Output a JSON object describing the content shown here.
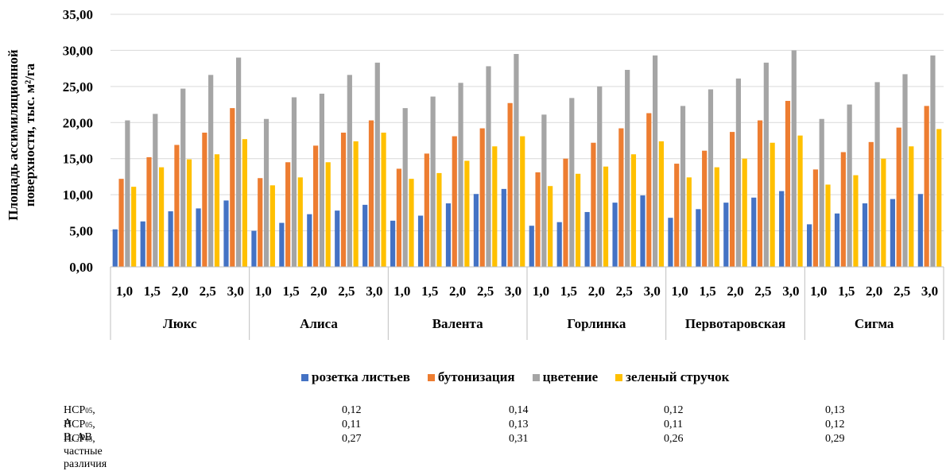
{
  "chart_data": {
    "type": "bar",
    "ylabel_lines": [
      "Площадь ассимиляционной",
      "поверхности, тыс. м²/га"
    ],
    "ylim": [
      0,
      35
    ],
    "yticks": [
      "0,00",
      "5,00",
      "10,00",
      "15,00",
      "20,00",
      "25,00",
      "30,00",
      "35,00"
    ],
    "grid": true,
    "legend_position": "bottom",
    "x_levels": [
      "1,0",
      "1,5",
      "2,0",
      "2,5",
      "3,0"
    ],
    "groups": [
      {
        "name": "Люкс",
        "values": [
          [
            5.2,
            12.2,
            20.3,
            11.1
          ],
          [
            6.3,
            15.2,
            21.2,
            13.8
          ],
          [
            7.7,
            16.9,
            24.7,
            14.9
          ],
          [
            8.1,
            18.6,
            26.6,
            15.6
          ],
          [
            9.2,
            22.0,
            29.0,
            17.7
          ]
        ]
      },
      {
        "name": "Алиса",
        "values": [
          [
            5.0,
            12.3,
            20.5,
            11.3
          ],
          [
            6.1,
            14.5,
            23.5,
            12.4
          ],
          [
            7.3,
            16.8,
            24.0,
            14.5
          ],
          [
            7.8,
            18.6,
            26.6,
            17.4
          ],
          [
            8.6,
            20.3,
            28.3,
            18.6
          ]
        ]
      },
      {
        "name": "Валента",
        "values": [
          [
            6.4,
            13.6,
            22.0,
            12.2
          ],
          [
            7.1,
            15.7,
            23.6,
            13.0
          ],
          [
            8.8,
            18.1,
            25.5,
            14.7
          ],
          [
            10.1,
            19.2,
            27.8,
            16.7
          ],
          [
            10.8,
            22.7,
            29.5,
            18.1
          ]
        ]
      },
      {
        "name": "Горлинка",
        "values": [
          [
            5.7,
            13.1,
            21.1,
            11.2
          ],
          [
            6.2,
            15.0,
            23.4,
            12.9
          ],
          [
            7.6,
            17.2,
            25.0,
            13.9
          ],
          [
            8.9,
            19.2,
            27.3,
            15.6
          ],
          [
            9.9,
            21.3,
            29.3,
            17.4
          ]
        ]
      },
      {
        "name": "Первотаровская",
        "values": [
          [
            6.8,
            14.3,
            22.3,
            12.4
          ],
          [
            8.0,
            16.1,
            24.6,
            13.8
          ],
          [
            8.9,
            18.7,
            26.1,
            15.0
          ],
          [
            9.6,
            20.3,
            28.3,
            17.2
          ],
          [
            10.5,
            23.0,
            30.0,
            18.2
          ]
        ]
      },
      {
        "name": "Сигма",
        "values": [
          [
            5.9,
            13.5,
            20.5,
            11.4
          ],
          [
            7.4,
            15.9,
            22.5,
            12.7
          ],
          [
            8.8,
            17.3,
            25.6,
            15.0
          ],
          [
            9.4,
            19.3,
            26.7,
            16.7
          ],
          [
            10.1,
            22.3,
            29.3,
            19.1
          ]
        ]
      }
    ],
    "series": [
      {
        "name": "розетка листьев",
        "color": "#4472C4"
      },
      {
        "name": "бутонизация",
        "color": "#ED7D31"
      },
      {
        "name": "цветение",
        "color": "#A5A5A5"
      },
      {
        "name": "зеленый стручок",
        "color": "#FFC000"
      }
    ]
  },
  "lsd_table": {
    "rows": [
      {
        "prefix": "НСР",
        "sub": "05",
        "suffix": ", А",
        "values": [
          "0,12",
          "0,14",
          "0,12",
          "0,13"
        ]
      },
      {
        "prefix": "НСР",
        "sub": "05",
        "suffix": ", В, АВ",
        "values": [
          "0,11",
          "0,13",
          "0,11",
          "0,12"
        ]
      },
      {
        "prefix": "НСР",
        "sub": "05",
        "suffix": ", частные различия",
        "values": [
          "0,27",
          "0,31",
          "0,26",
          "0,29"
        ]
      }
    ]
  }
}
